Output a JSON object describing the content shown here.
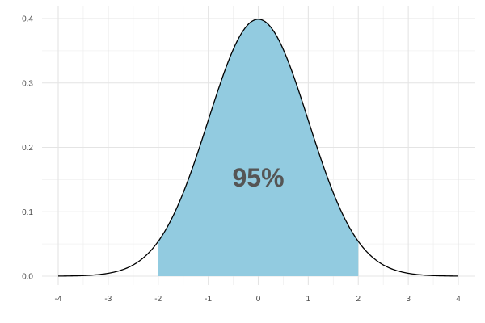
{
  "chart_data": {
    "type": "area",
    "title": "",
    "xlabel": "",
    "ylabel": "",
    "xlim": [
      -4,
      4
    ],
    "ylim": [
      0,
      0.4
    ],
    "x_ticks": [
      -4,
      -3,
      -2,
      -1,
      0,
      1,
      2,
      3,
      4
    ],
    "x_tick_labels": [
      "-4",
      "-3",
      "-2",
      "-1",
      "0",
      "1",
      "2",
      "3",
      "4"
    ],
    "y_ticks": [
      0,
      0.1,
      0.2,
      0.3,
      0.4
    ],
    "y_tick_labels": [
      "0.0",
      "0.1",
      "0.2",
      "0.3",
      "0.4"
    ],
    "grid": true,
    "series": [
      {
        "curve": "normal-density",
        "mean": 0,
        "sd": 1,
        "x_range": [
          -4,
          4
        ],
        "line_color": "#000000"
      }
    ],
    "shaded_region": {
      "x_from": -2,
      "x_to": 2,
      "fill_color": "#92cbe0"
    },
    "annotation": {
      "text": "95%",
      "x": 0,
      "y": 0.15,
      "color": "#555555"
    }
  }
}
